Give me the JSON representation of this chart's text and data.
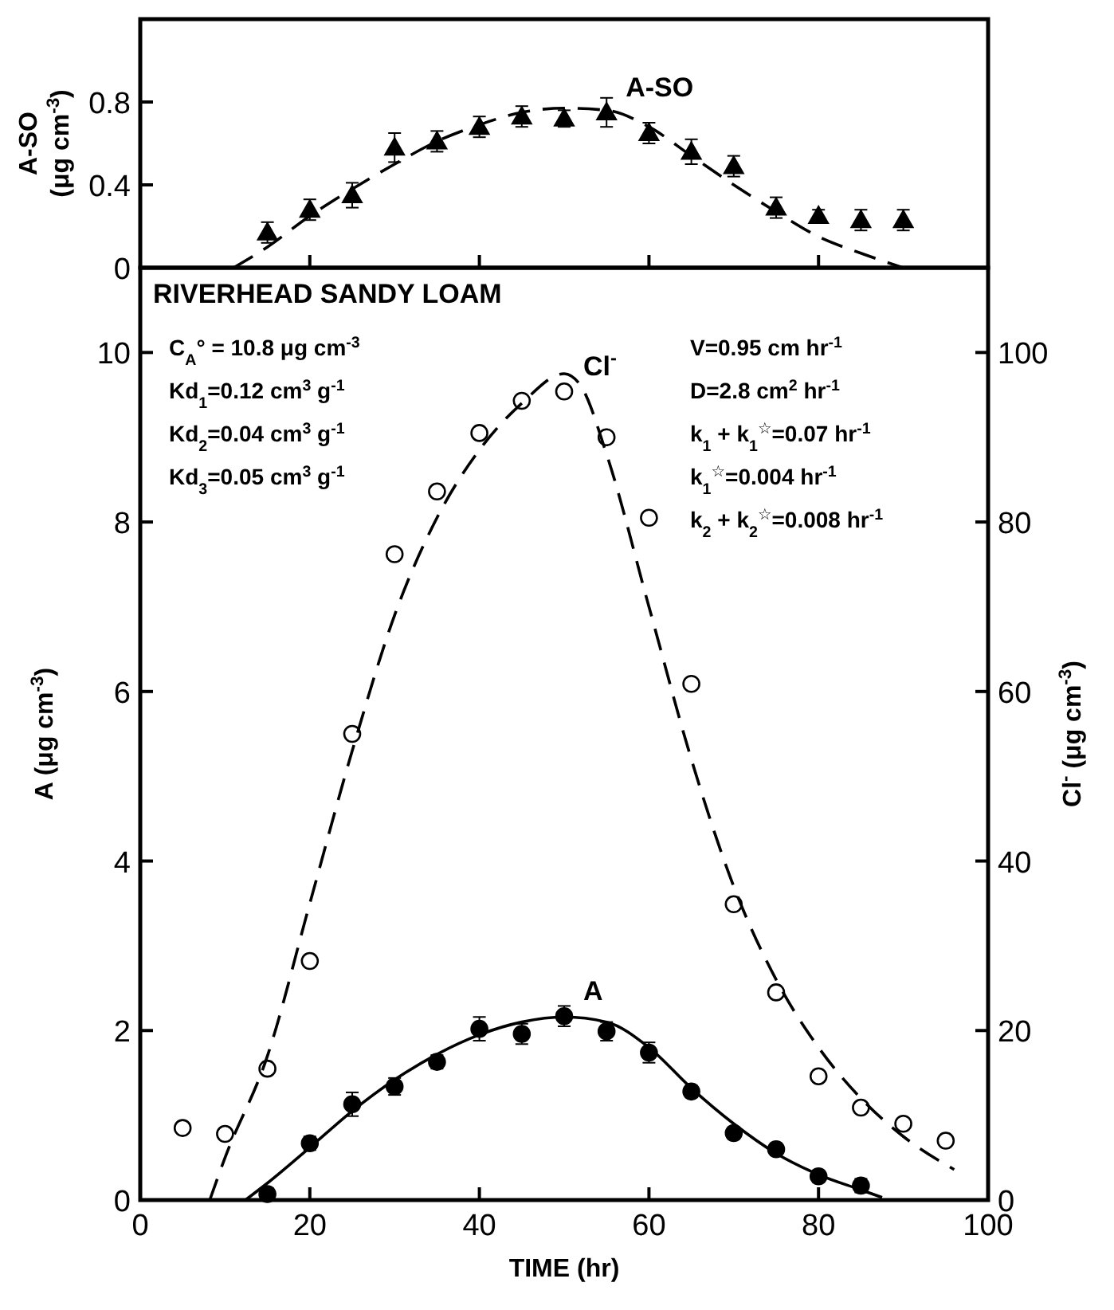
{
  "chart_data": [
    {
      "type": "scatter",
      "ylabel": "A-SO (μg cm$^{-3}$)",
      "xlim": [
        0,
        100
      ],
      "xticks": [
        0,
        20,
        40,
        60,
        80,
        100
      ],
      "ylim": [
        0,
        1.2
      ],
      "yticks": [
        0,
        0.4,
        0.8
      ],
      "tick_labels": "y",
      "series": [
        {
          "name": "A-SO",
          "type": "scatter",
          "marker": "triangle",
          "color": "#000000",
          "x": [
            15,
            20,
            25,
            30,
            35,
            40,
            45,
            50,
            55,
            60,
            65,
            70,
            75,
            80,
            85,
            90
          ],
          "values": [
            0.17,
            0.28,
            0.35,
            0.58,
            0.61,
            0.68,
            0.73,
            0.72,
            0.75,
            0.65,
            0.56,
            0.49,
            0.29,
            0.25,
            0.23,
            0.23
          ],
          "errors": [
            0.05,
            0.05,
            0.06,
            0.07,
            0.05,
            0.05,
            0.05,
            0.04,
            0.07,
            0.05,
            0.06,
            0.05,
            0.05,
            0.03,
            0.05,
            0.05
          ]
        },
        {
          "type": "line",
          "line_style": "dashed",
          "color": "#000000",
          "x": [
            11,
            15,
            20,
            25,
            30,
            35,
            40,
            45,
            50,
            55,
            60,
            65,
            70,
            75,
            80,
            85,
            90
          ],
          "values": [
            0,
            0.1,
            0.25,
            0.38,
            0.5,
            0.61,
            0.69,
            0.75,
            0.77,
            0.76,
            0.68,
            0.54,
            0.4,
            0.27,
            0.15,
            0.07,
            0
          ]
        }
      ]
    },
    {
      "type": "scatter",
      "title": "RIVERHEAD SANDY LOAM",
      "xlabel": "TIME (hr)",
      "ylabel": "A (μg cm$^{-3}$)",
      "y2label": "Cl$^{-}$ (μg cm$^{-3}$)",
      "xlim": [
        0,
        100
      ],
      "xticks": [
        0,
        20,
        40,
        60,
        80,
        100
      ],
      "ylim": [
        0,
        11
      ],
      "yticks": [
        0,
        2,
        4,
        6,
        8,
        10
      ],
      "y2lim": [
        0,
        110
      ],
      "y2ticks": [
        0,
        20,
        40,
        60,
        80,
        100
      ],
      "annotations": [
        "C$_{A}$° = 10.8 μg cm$^{-3}$",
        "Kd$_{1}$=0.12 cm$^{3}$ g$^{-1}$",
        "Kd$_{2}$=0.04 cm$^{3}$ g$^{-1}$",
        "Kd$_{3}$=0.05 cm$^{3}$ g$^{-1}$",
        "V=0.95 cm hr$^{-1}$",
        "D=2.8 cm$^{2}$ hr$^{-1}$",
        "k$_{1}$ + k$_{1}$$^{☆}$=0.07 hr$^{-1}$",
        "k$_{1}$$^{☆}$=0.004 hr$^{-1}$",
        "k$_{2}$ + k$_{2}$$^{☆}$=0.008 hr$^{-1}$"
      ],
      "series": [
        {
          "name": "Cl$^{-}$",
          "type": "scatter",
          "axis": "y2",
          "marker": "circle",
          "color": "#ffffff",
          "x": [
            5,
            10,
            15,
            20,
            25,
            30,
            35,
            40,
            45,
            50,
            55,
            60,
            65,
            70,
            75,
            80,
            85,
            90,
            95
          ],
          "values": [
            8.5,
            7.8,
            15.5,
            28.2,
            55,
            76.2,
            83.6,
            90.5,
            94.3,
            95.4,
            90,
            80.5,
            60.9,
            34.9,
            24.5,
            14.6,
            10.9,
            9,
            7
          ]
        },
        {
          "type": "line",
          "axis": "y2",
          "line_style": "dashed",
          "color": "#000000",
          "x": [
            8.2,
            10,
            15,
            20,
            25,
            30,
            35,
            40,
            45,
            50,
            52,
            55,
            60,
            65,
            70,
            75,
            80,
            85,
            90,
            96
          ],
          "values": [
            0,
            5,
            17,
            35,
            53,
            69,
            80.5,
            88.5,
            94,
            97.5,
            96,
            88,
            70,
            52,
            37,
            26,
            18,
            12,
            7.5,
            3.6
          ]
        },
        {
          "name": "A",
          "type": "scatter",
          "marker": "circle",
          "color": "#000000",
          "x": [
            15,
            20,
            25,
            30,
            35,
            40,
            45,
            50,
            55,
            60,
            65,
            70,
            75,
            80,
            85
          ],
          "values": [
            0.07,
            0.67,
            1.13,
            1.34,
            1.63,
            2.02,
            1.96,
            2.17,
            1.99,
            1.74,
            1.28,
            0.79,
            0.6,
            0.28,
            0.17
          ],
          "errors": [
            0.07,
            0.08,
            0.14,
            0.1,
            0.08,
            0.14,
            0.12,
            0.12,
            0.11,
            0.12,
            0.07,
            0.07,
            0.07,
            0.07,
            0.08
          ]
        },
        {
          "type": "line",
          "line_style": "solid",
          "color": "#000000",
          "x": [
            12.4,
            15,
            20,
            25,
            30,
            35,
            40,
            45,
            50,
            55,
            60,
            65,
            70,
            75,
            80,
            85,
            87.5
          ],
          "values": [
            0,
            0.2,
            0.62,
            1.05,
            1.42,
            1.72,
            1.95,
            2.1,
            2.16,
            2.1,
            1.8,
            1.32,
            0.9,
            0.55,
            0.3,
            0.12,
            0.03
          ]
        }
      ]
    }
  ]
}
